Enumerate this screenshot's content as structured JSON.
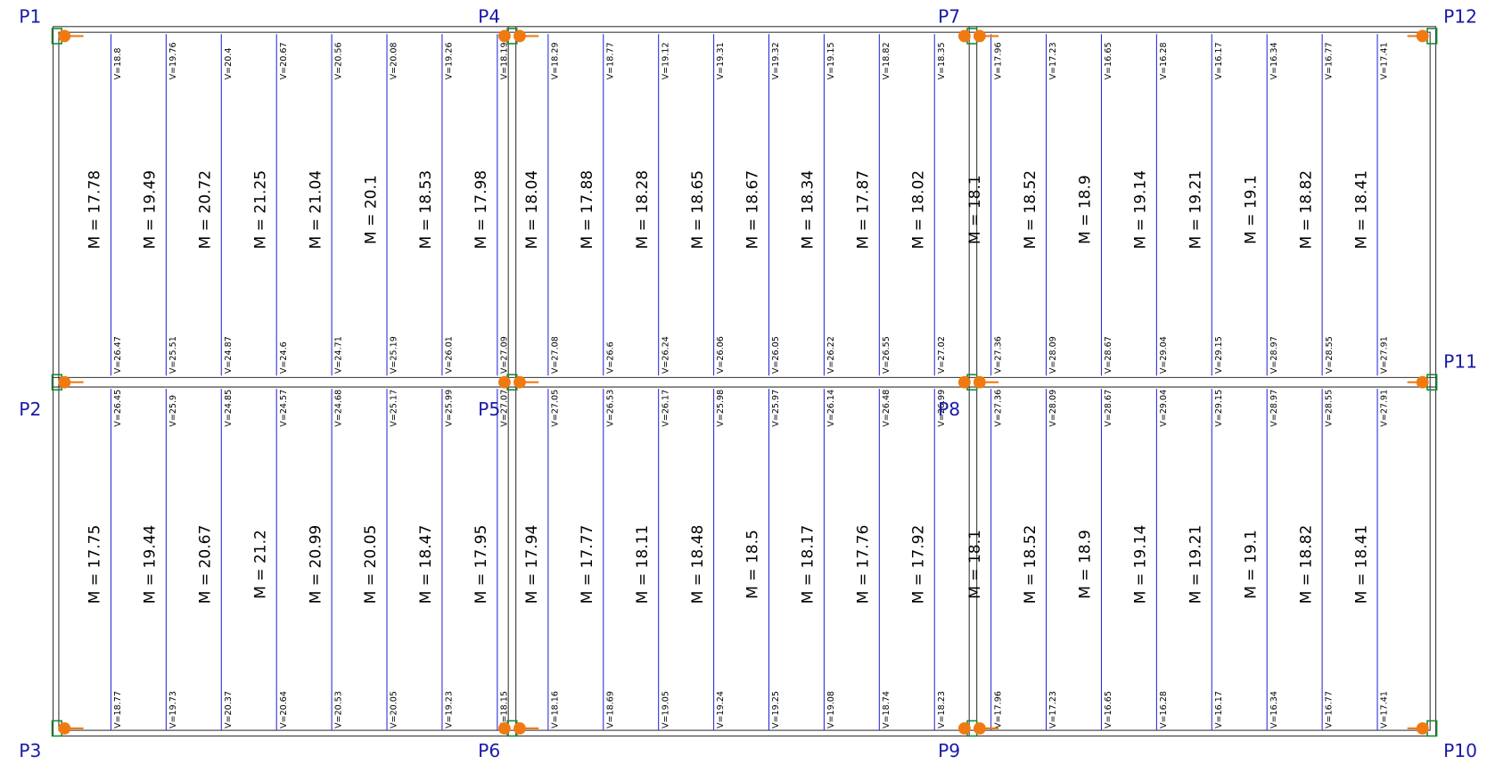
{
  "pillars": [
    {
      "label": "P1"
    },
    {
      "label": "P2"
    },
    {
      "label": "P3"
    },
    {
      "label": "P4"
    },
    {
      "label": "P5"
    },
    {
      "label": "P6"
    },
    {
      "label": "P7"
    },
    {
      "label": "P8"
    },
    {
      "label": "P9"
    },
    {
      "label": "P10"
    },
    {
      "label": "P11"
    },
    {
      "label": "P12"
    }
  ],
  "panels": [
    {
      "top_v": [
        "V=18.8",
        "V=19.76",
        "V=20.4",
        "V=20.67",
        "V=20.56",
        "V=20.08",
        "V=19.26",
        "V=18.19"
      ],
      "m": [
        "M = 17.78",
        "M = 19.49",
        "M = 20.72",
        "M = 21.25",
        "M = 21.04",
        "M = 20.1",
        "M = 18.53",
        "M = 17.98"
      ],
      "bottom_v": [
        "V=26.47",
        "V=25.51",
        "V=24.87",
        "V=24.6",
        "V=24.71",
        "V=25.19",
        "V=26.01",
        "V=27.09"
      ]
    },
    {
      "top_v": [
        "V=26.45",
        "V=25.9",
        "V=24.85",
        "V=24.57",
        "V=24.68",
        "V=25.17",
        "V=25.99",
        "V=27.07"
      ],
      "m": [
        "M = 17.75",
        "M = 19.44",
        "M = 20.67",
        "M = 21.2",
        "M = 20.99",
        "M = 20.05",
        "M = 18.47",
        "M = 17.95"
      ],
      "bottom_v": [
        "V=18.77",
        "V=19.73",
        "V=20.37",
        "V=20.64",
        "V=20.53",
        "V=20.05",
        "V=19.23",
        "V=18.15"
      ]
    },
    {
      "top_v": [
        "V=18.29",
        "V=18.77",
        "V=19.12",
        "V=19.31",
        "V=19.32",
        "V=19.15",
        "V=18.82",
        "V=18.35"
      ],
      "m": [
        "M = 18.04",
        "M = 17.88",
        "M = 18.28",
        "M = 18.65",
        "M = 18.67",
        "M = 18.34",
        "M = 17.87",
        "M = 18.02"
      ],
      "bottom_v": [
        "V=27.08",
        "V=26.6",
        "V=26.24",
        "V=26.06",
        "V=26.05",
        "V=26.22",
        "V=26.55",
        "V=27.02"
      ]
    },
    {
      "top_v": [
        "V=27.05",
        "V=26.53",
        "V=26.17",
        "V=25.98",
        "V=25.97",
        "V=26.14",
        "V=26.48",
        "V=26.99"
      ],
      "m": [
        "M = 17.94",
        "M = 17.77",
        "M = 18.11",
        "M = 18.48",
        "M = 18.5",
        "M = 18.17",
        "M = 17.76",
        "M = 17.92"
      ],
      "bottom_v": [
        "V=18.16",
        "V=18.69",
        "V=19.05",
        "V=19.24",
        "V=19.25",
        "V=19.08",
        "V=18.74",
        "V=18.23"
      ]
    },
    {
      "top_v": [
        "V=17.96",
        "V=17.23",
        "V=16.65",
        "V=16.28",
        "V=16.17",
        "V=16.34",
        "V=16.77",
        "V=17.41"
      ],
      "m": [
        "M = 18.1",
        "M = 18.52",
        "M = 18.9",
        "M = 19.14",
        "M = 19.21",
        "M = 19.1",
        "M = 18.82",
        "M = 18.41"
      ],
      "bottom_v": [
        "V=27.36",
        "V=28.09",
        "V=28.67",
        "V=29.04",
        "V=29.15",
        "V=28.97",
        "V=28.55",
        "V=27.91"
      ]
    },
    {
      "top_v": [
        "V=27.36",
        "V=28.09",
        "V=28.67",
        "V=29.04",
        "V=29.15",
        "V=28.97",
        "V=28.55",
        "V=27.91"
      ],
      "m": [
        "M = 18.1",
        "M = 18.52",
        "M = 18.9",
        "M = 19.14",
        "M = 19.21",
        "M = 19.1",
        "M = 18.82",
        "M = 18.41"
      ],
      "bottom_v": [
        "V=17.96",
        "V=17.23",
        "V=16.65",
        "V=16.28",
        "V=16.17",
        "V=16.34",
        "V=16.77",
        "V=17.41"
      ]
    }
  ]
}
